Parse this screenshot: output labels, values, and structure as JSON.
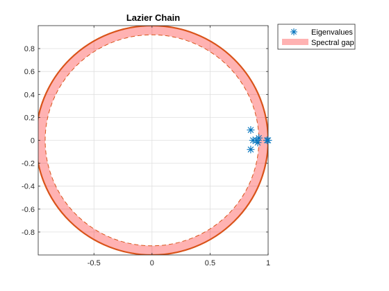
{
  "chart_data": {
    "type": "scatter",
    "title": "Lazier Chain",
    "xlabel": "",
    "ylabel": "",
    "xlim": [
      -0.98,
      1.0
    ],
    "ylim": [
      -1.0,
      1.0
    ],
    "xticks": [
      -0.5,
      0,
      0.5,
      1
    ],
    "xtick_labels": [
      "-0.5",
      "0",
      "0.5",
      "1"
    ],
    "yticks": [
      -0.8,
      -0.6,
      -0.4,
      -0.2,
      0,
      0.2,
      0.4,
      0.6,
      0.8
    ],
    "ytick_labels": [
      "-0.8",
      "-0.6",
      "-0.4",
      "-0.2",
      "0",
      "0.2",
      "0.4",
      "0.6",
      "0.8"
    ],
    "grid": true,
    "legend_position": "outside top-right",
    "series": [
      {
        "name": "Eigenvalues",
        "marker": "asterisk",
        "color": "#0072BD",
        "points": [
          {
            "x": 1.0,
            "y": 0.0
          },
          {
            "x": 0.99,
            "y": 0.0
          },
          {
            "x": 0.92,
            "y": 0.02
          },
          {
            "x": 0.91,
            "y": -0.02
          },
          {
            "x": 0.9,
            "y": 0.0
          },
          {
            "x": 0.87,
            "y": 0.0
          },
          {
            "x": 0.85,
            "y": 0.09
          },
          {
            "x": 0.85,
            "y": -0.08
          }
        ]
      },
      {
        "name": "Spectral gap",
        "type": "annulus",
        "color": "#FF0000",
        "fill_opacity": 0.3,
        "inner_radius": 0.92,
        "outer_radius": 1.0
      }
    ],
    "unit_circle_color": "#D95319"
  }
}
